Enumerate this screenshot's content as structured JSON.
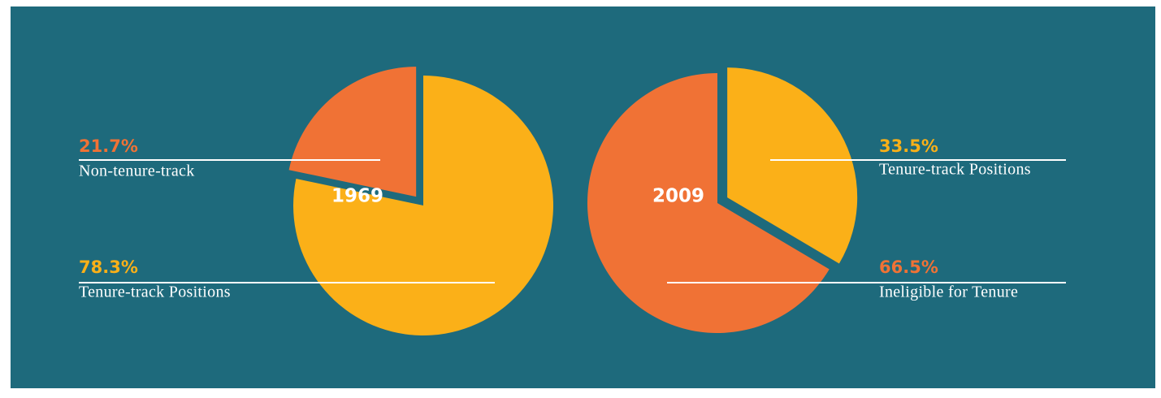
{
  "chart_data": [
    {
      "type": "pie",
      "title": "1969",
      "categories": [
        "Non-tenure-track",
        "Tenure-track Positions"
      ],
      "values": [
        21.7,
        78.3
      ],
      "value_labels": [
        "21.7%",
        "78.3%"
      ],
      "colors": [
        "#f07235",
        "#fbb018"
      ],
      "direction": "counterclockwise",
      "exploded": 0
    },
    {
      "type": "pie",
      "title": "2009",
      "categories": [
        "Tenure-track Positions",
        "Ineligible for Tenure"
      ],
      "values": [
        33.5,
        66.5
      ],
      "value_labels": [
        "33.5%",
        "66.5%"
      ],
      "colors": [
        "#fbb018",
        "#f07235"
      ],
      "direction": "clockwise",
      "exploded": 0
    }
  ]
}
